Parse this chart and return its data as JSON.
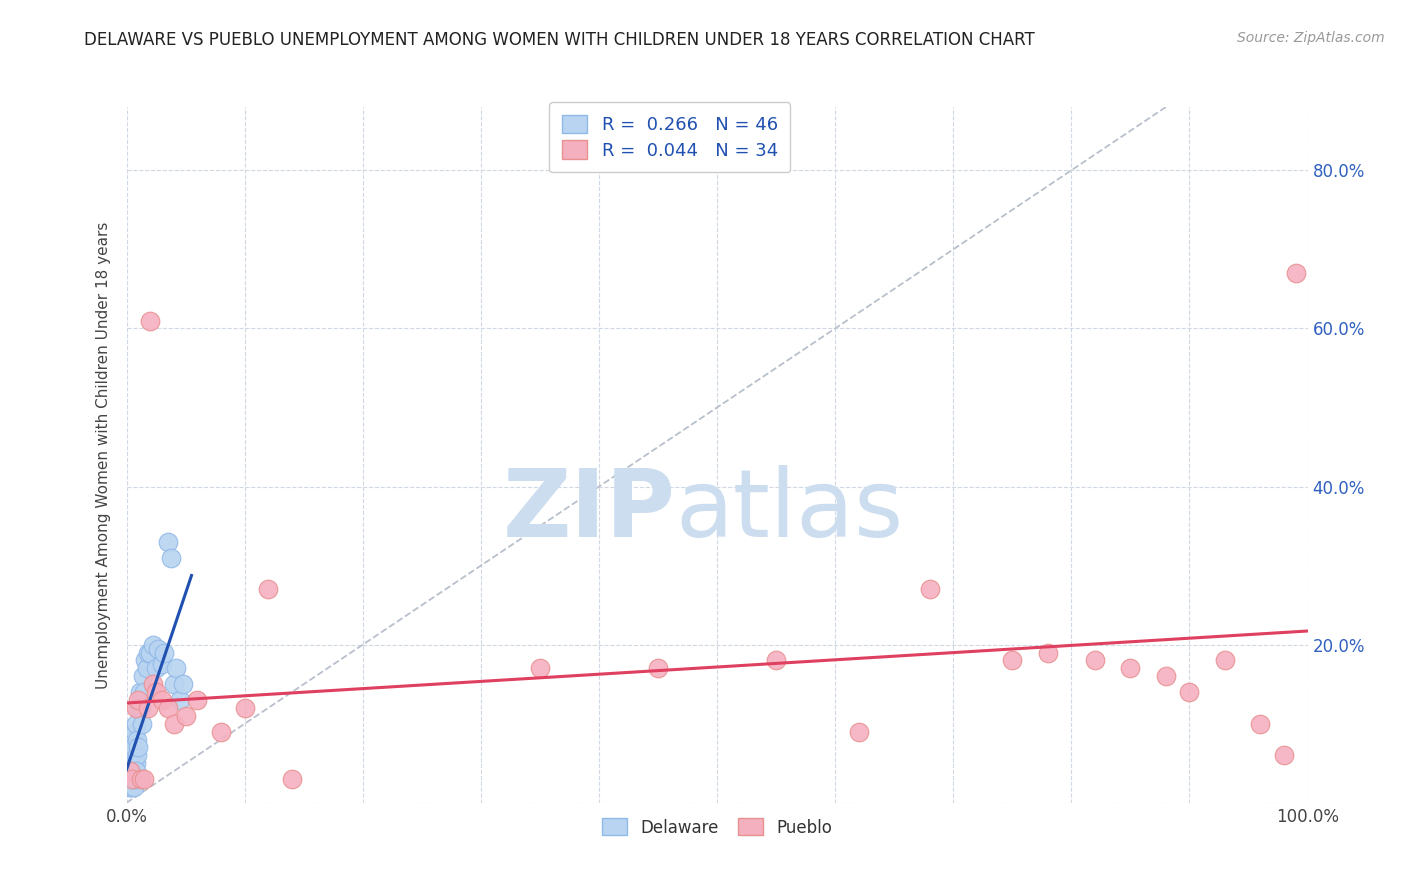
{
  "title": "DELAWARE VS PUEBLO UNEMPLOYMENT AMONG WOMEN WITH CHILDREN UNDER 18 YEARS CORRELATION CHART",
  "source": "Source: ZipAtlas.com",
  "ylabel": "Unemployment Among Women with Children Under 18 years",
  "xlim": [
    0.0,
    1.0
  ],
  "ylim": [
    0.0,
    0.88
  ],
  "xticks": [
    0.0,
    0.1,
    0.2,
    0.3,
    0.4,
    0.5,
    0.6,
    0.7,
    0.8,
    0.9,
    1.0
  ],
  "xticklabels": [
    "0.0%",
    "",
    "",
    "",
    "",
    "",
    "",
    "",
    "",
    "",
    "100.0%"
  ],
  "yticks": [
    0.0,
    0.2,
    0.4,
    0.6,
    0.8
  ],
  "yticklabels_right": [
    "",
    "20.0%",
    "40.0%",
    "60.0%",
    "80.0%"
  ],
  "delaware_color": "#b8d4f0",
  "pueblo_color": "#f5b0c0",
  "delaware_edge": "#90b8e8",
  "pueblo_edge": "#e89090",
  "blue_line_color": "#2050b0",
  "pink_line_color": "#e04060",
  "diagonal_color": "#b8c0cc",
  "legend_R_delaware": "R =  0.266",
  "legend_N_delaware": "N = 46",
  "legend_R_pueblo": "R =  0.044",
  "legend_N_pueblo": "N = 34",
  "watermark_ZIP": "ZIP",
  "watermark_atlas": "atlas",
  "watermark_color": "#ccddf0",
  "grid_color": "#d0d8e4",
  "background_color": "#ffffff",
  "delaware_x": [
    0.001,
    0.002,
    0.002,
    0.003,
    0.003,
    0.004,
    0.004,
    0.005,
    0.005,
    0.005,
    0.006,
    0.006,
    0.007,
    0.007,
    0.008,
    0.008,
    0.009,
    0.009,
    0.01,
    0.01,
    0.011,
    0.012,
    0.013,
    0.014,
    0.015,
    0.016,
    0.017,
    0.018,
    0.02,
    0.022,
    0.025,
    0.027,
    0.03,
    0.032,
    0.035,
    0.038,
    0.04,
    0.042,
    0.045,
    0.048,
    0.003,
    0.004,
    0.005,
    0.006,
    0.007,
    0.008
  ],
  "delaware_y": [
    0.04,
    0.03,
    0.05,
    0.02,
    0.04,
    0.03,
    0.06,
    0.04,
    0.06,
    0.08,
    0.05,
    0.07,
    0.04,
    0.09,
    0.05,
    0.1,
    0.06,
    0.08,
    0.07,
    0.12,
    0.14,
    0.12,
    0.1,
    0.16,
    0.14,
    0.18,
    0.17,
    0.19,
    0.19,
    0.2,
    0.17,
    0.195,
    0.175,
    0.19,
    0.33,
    0.31,
    0.15,
    0.17,
    0.13,
    0.15,
    0.03,
    0.02,
    0.03,
    0.02,
    0.03,
    0.04
  ],
  "pueblo_x": [
    0.003,
    0.005,
    0.008,
    0.01,
    0.012,
    0.015,
    0.018,
    0.02,
    0.022,
    0.025,
    0.03,
    0.035,
    0.04,
    0.05,
    0.06,
    0.08,
    0.1,
    0.12,
    0.14,
    0.35,
    0.45,
    0.55,
    0.62,
    0.68,
    0.75,
    0.78,
    0.82,
    0.85,
    0.88,
    0.9,
    0.93,
    0.96,
    0.98,
    0.99
  ],
  "pueblo_y": [
    0.04,
    0.03,
    0.12,
    0.13,
    0.03,
    0.03,
    0.12,
    0.61,
    0.15,
    0.14,
    0.13,
    0.12,
    0.1,
    0.11,
    0.13,
    0.09,
    0.12,
    0.27,
    0.03,
    0.17,
    0.17,
    0.18,
    0.09,
    0.27,
    0.18,
    0.19,
    0.18,
    0.17,
    0.16,
    0.14,
    0.18,
    0.1,
    0.06,
    0.67
  ]
}
